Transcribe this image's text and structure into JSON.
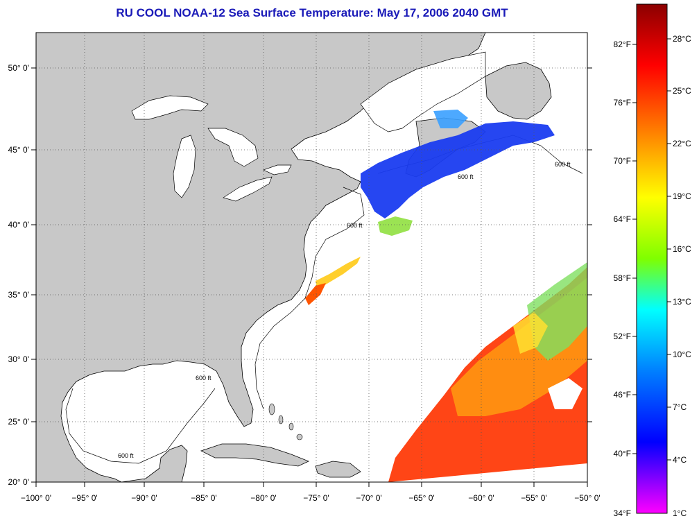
{
  "title": "RU COOL  NOAA-12  Sea Surface Temperature:  May 17, 2006 2040 GMT",
  "map": {
    "lon_ticks": [
      "−100° 0'",
      "−95° 0'",
      "−90° 0'",
      "−85° 0'",
      "−80° 0'",
      "−75° 0'",
      "−70° 0'",
      "−65° 0'",
      "−60° 0'",
      "−55° 0'",
      "−50° 0'"
    ],
    "lat_ticks": [
      "50° 0'",
      "45° 0'",
      "40° 0'",
      "35° 0'",
      "30° 0'",
      "25° 0'",
      "20° 0'"
    ],
    "isobath_label": "600 ft",
    "colors": {
      "land": "#c8c8c8",
      "ocean": "#ffffff",
      "grid": "#555555",
      "title": "#1a1ab8"
    }
  },
  "colorbar": {
    "f_labels": [
      "82°F",
      "76°F",
      "70°F",
      "64°F",
      "58°F",
      "52°F",
      "46°F",
      "40°F",
      "34°F"
    ],
    "c_labels": [
      "28°C",
      "25°C",
      "22°C",
      "19°C",
      "16°C",
      "13°C",
      "10°C",
      "7°C",
      "4°C",
      "1°C"
    ],
    "gradient": [
      "#8b0000",
      "#ff0000",
      "#ff7f00",
      "#ffff00",
      "#7fff00",
      "#00ffff",
      "#0080ff",
      "#0000ff",
      "#7f00ff",
      "#ff00ff"
    ]
  }
}
